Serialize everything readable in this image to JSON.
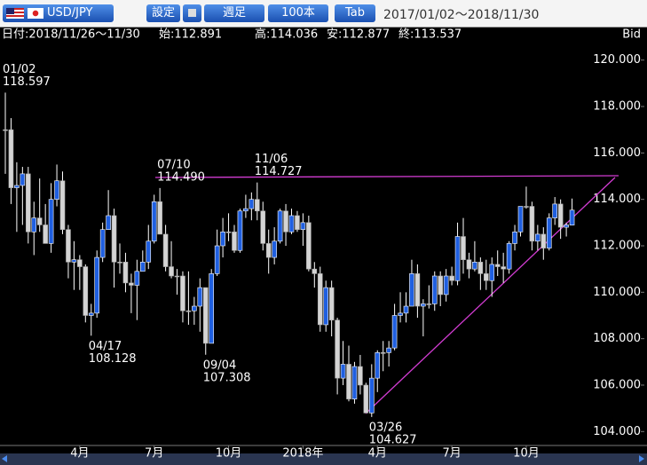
{
  "toolbar": {
    "pair": "USD/JPY",
    "settings": "設定",
    "period": "週足",
    "count": "100本",
    "tab": "Tab",
    "range": "2017/01/02〜2018/11/30"
  },
  "info": [
    "日付:2018/11/26〜11/30",
    "始:112.891",
    "高:114.036",
    "安:112.877",
    "終:113.537"
  ],
  "chart_data": {
    "type": "candlestick",
    "axis_label": "Bid",
    "up_color": "#1f5fe0",
    "down_color": "#d4d4d4",
    "trendline_color": "#d23cd2",
    "categories": [
      null,
      null,
      null,
      null,
      null,
      null,
      null,
      null,
      null,
      null,
      null,
      null,
      null,
      "4月",
      null,
      null,
      null,
      null,
      null,
      null,
      null,
      null,
      null,
      null,
      null,
      null,
      "7月",
      null,
      null,
      null,
      null,
      null,
      null,
      null,
      null,
      null,
      null,
      null,
      null,
      "10月",
      null,
      null,
      null,
      null,
      null,
      null,
      null,
      null,
      null,
      null,
      null,
      null,
      "2018年",
      null,
      null,
      null,
      null,
      null,
      null,
      null,
      null,
      null,
      null,
      null,
      null,
      "4月",
      null,
      null,
      null,
      null,
      null,
      null,
      null,
      null,
      null,
      null,
      null,
      null,
      "7月",
      null,
      null,
      null,
      null,
      null,
      null,
      null,
      null,
      null,
      null,
      null,
      null,
      "10月",
      null,
      null,
      null,
      null,
      null,
      null,
      null,
      null
    ],
    "open": [
      117.0,
      117.0,
      114.5,
      114.6,
      115.1,
      112.6,
      113.2,
      112.9,
      112.1,
      114.0,
      114.8,
      112.7,
      111.3,
      111.4,
      111.1,
      109.0,
      109.1,
      111.5,
      112.7,
      113.3,
      111.3,
      111.3,
      110.4,
      110.3,
      110.9,
      111.3,
      112.2,
      113.9,
      112.5,
      111.1,
      110.7,
      110.7,
      109.2,
      109.2,
      109.4,
      110.2,
      107.8,
      110.8,
      112.0,
      112.6,
      112.6,
      111.8,
      113.5,
      113.6,
      114.0,
      113.5,
      112.1,
      111.5,
      112.2,
      113.5,
      112.6,
      113.3,
      112.7,
      113.0,
      111.0,
      110.8,
      108.6,
      110.2,
      108.8,
      106.3,
      106.9,
      105.4,
      106.8,
      106.0,
      104.8,
      106.3,
      107.4,
      107.4,
      107.6,
      109.0,
      109.1,
      109.4,
      110.8,
      109.4,
      109.5,
      109.5,
      110.7,
      109.9,
      110.7,
      110.5,
      112.4,
      111.4,
      111.0,
      111.3,
      110.8,
      110.5,
      111.2,
      111.1,
      111.0,
      112.1,
      112.6,
      113.7,
      113.7,
      112.2,
      112.5,
      111.9,
      113.2,
      113.8,
      112.8,
      112.891
    ],
    "high": [
      118.597,
      117.5,
      115.6,
      115.4,
      115.4,
      113.9,
      114.9,
      113.8,
      114.7,
      115.5,
      115.2,
      112.9,
      112.2,
      111.6,
      111.2,
      109.5,
      111.8,
      113.0,
      114.4,
      113.6,
      112.1,
      111.7,
      110.8,
      111.4,
      111.8,
      112.9,
      114.2,
      114.49,
      112.9,
      112.2,
      111.0,
      110.9,
      110.9,
      109.8,
      110.6,
      110.2,
      111.0,
      112.7,
      113.2,
      113.4,
      112.9,
      113.6,
      114.2,
      114.3,
      114.727,
      113.9,
      112.7,
      112.8,
      113.6,
      113.8,
      113.6,
      113.5,
      113.4,
      113.3,
      111.3,
      111.1,
      110.5,
      110.5,
      108.9,
      107.9,
      107.7,
      107.0,
      107.3,
      106.1,
      106.9,
      107.5,
      107.9,
      107.9,
      109.5,
      110.0,
      110.0,
      111.4,
      111.2,
      109.7,
      110.3,
      110.9,
      110.9,
      111.0,
      111.1,
      113.0,
      113.2,
      111.7,
      112.2,
      111.5,
      111.4,
      111.5,
      111.8,
      111.7,
      112.2,
      112.9,
      113.7,
      114.55,
      113.9,
      112.9,
      112.8,
      113.4,
      114.1,
      114.0,
      113.0,
      114.036
    ],
    "low": [
      115.1,
      113.8,
      112.6,
      112.9,
      112.1,
      111.6,
      112.6,
      112.1,
      111.7,
      113.7,
      112.5,
      110.6,
      110.1,
      110.1,
      108.7,
      108.128,
      108.9,
      111.3,
      112.8,
      110.2,
      110.8,
      110.0,
      109.1,
      108.8,
      110.9,
      111.0,
      112.1,
      112.5,
      110.9,
      110.6,
      109.9,
      108.7,
      108.6,
      108.6,
      108.3,
      107.308,
      107.9,
      110.7,
      111.5,
      112.2,
      111.7,
      111.7,
      113.2,
      113.1,
      113.1,
      111.8,
      110.8,
      111.2,
      112.1,
      112.0,
      112.5,
      112.6,
      112.0,
      110.9,
      110.2,
      108.3,
      108.3,
      108.1,
      105.6,
      106.0,
      105.3,
      105.2,
      105.6,
      104.9,
      104.627,
      105.7,
      106.6,
      106.8,
      107.5,
      108.7,
      108.7,
      109.4,
      108.9,
      108.1,
      109.3,
      109.2,
      109.4,
      109.6,
      110.3,
      110.3,
      110.8,
      110.6,
      110.9,
      110.1,
      110.1,
      109.8,
      110.7,
      110.4,
      110.8,
      111.8,
      112.4,
      113.6,
      111.8,
      111.8,
      111.4,
      111.8,
      112.9,
      112.3,
      112.4,
      112.877
    ],
    "close": [
      117.0,
      114.5,
      114.6,
      115.1,
      112.6,
      113.2,
      112.9,
      112.1,
      114.0,
      114.8,
      112.7,
      111.3,
      111.4,
      111.1,
      109.0,
      109.1,
      111.5,
      112.7,
      113.3,
      111.3,
      111.3,
      110.4,
      110.3,
      110.9,
      111.3,
      112.2,
      113.9,
      112.5,
      111.1,
      110.7,
      110.7,
      109.2,
      109.2,
      109.4,
      110.2,
      107.8,
      110.8,
      112.0,
      112.6,
      112.6,
      111.8,
      113.5,
      113.6,
      114.0,
      113.5,
      112.1,
      111.5,
      112.2,
      113.5,
      112.6,
      113.3,
      112.7,
      113.0,
      111.0,
      110.8,
      108.6,
      110.2,
      108.8,
      106.3,
      106.9,
      105.4,
      106.8,
      106.0,
      104.8,
      106.3,
      107.4,
      107.4,
      107.6,
      109.0,
      109.1,
      109.4,
      110.8,
      109.4,
      109.5,
      109.5,
      110.7,
      109.9,
      110.7,
      110.5,
      112.4,
      111.4,
      111.0,
      111.3,
      110.8,
      110.5,
      111.2,
      111.1,
      111.0,
      112.1,
      112.6,
      113.7,
      113.7,
      112.2,
      112.5,
      111.9,
      113.2,
      113.8,
      112.8,
      112.9,
      113.537
    ],
    "annotations": [
      {
        "date": "01/02",
        "value": "118.597"
      },
      {
        "date": "04/17",
        "value": "108.128"
      },
      {
        "date": "07/10",
        "value": "114.490"
      },
      {
        "date": "09/04",
        "value": "107.308"
      },
      {
        "date": "11/06",
        "value": "114.727"
      },
      {
        "date": "03/26",
        "value": "104.627"
      }
    ],
    "ylim": [
      103.4,
      120.6
    ],
    "yticks": [
      {
        "value": 104,
        "label": "104.000"
      },
      {
        "value": 106,
        "label": "106.000"
      },
      {
        "value": 108,
        "label": "108.000"
      },
      {
        "value": 110,
        "label": "110.000"
      },
      {
        "value": 112,
        "label": "112.000"
      },
      {
        "value": 114,
        "label": "114.000"
      },
      {
        "value": 116,
        "label": "116.000"
      },
      {
        "value": 118,
        "label": "118.000"
      },
      {
        "value": 120,
        "label": "120.000"
      }
    ]
  }
}
